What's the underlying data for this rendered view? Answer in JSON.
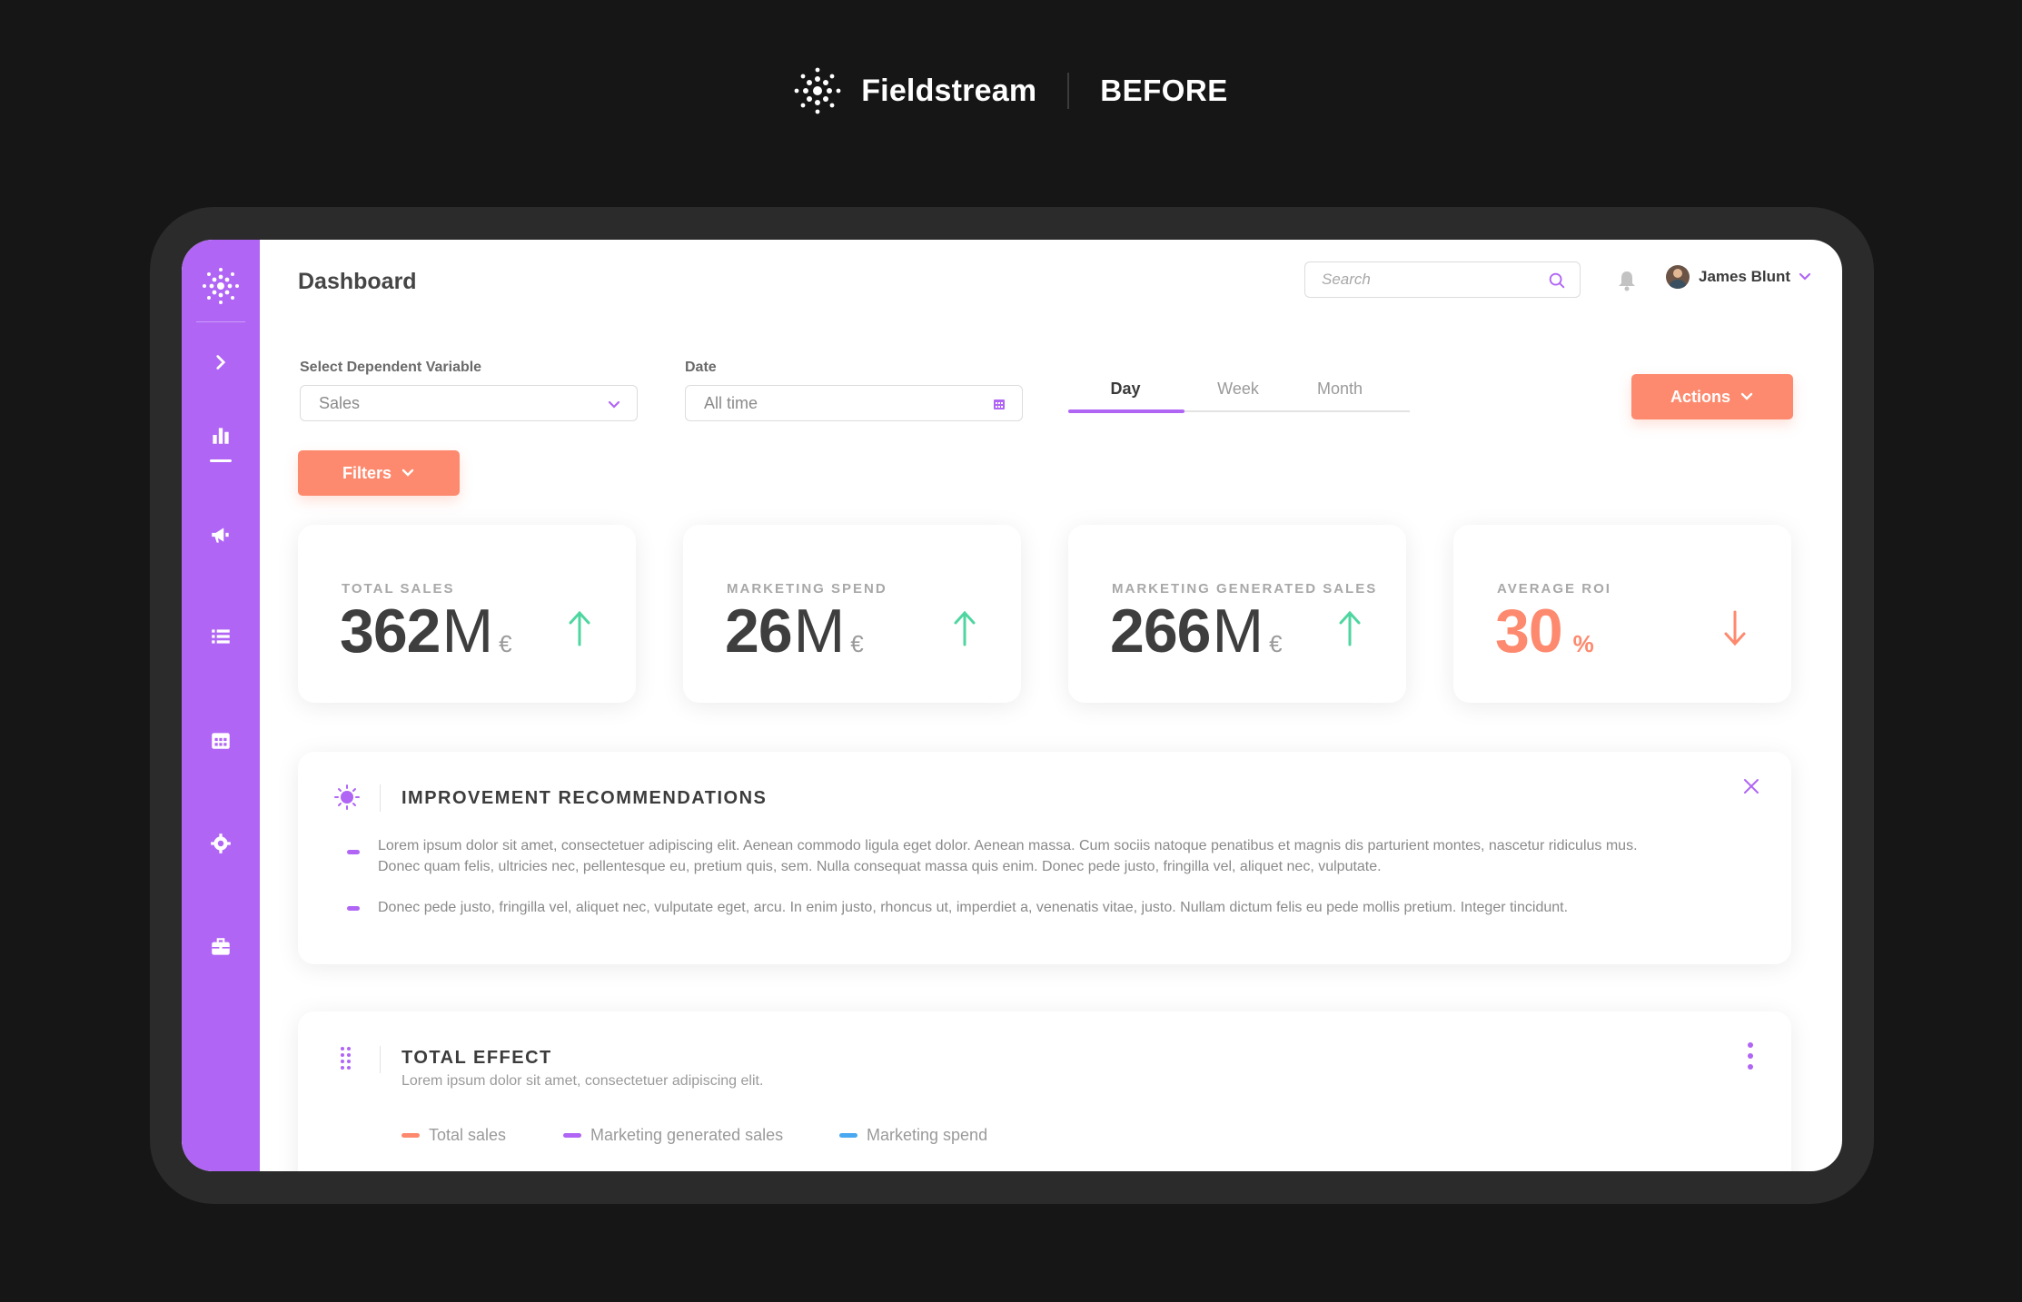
{
  "brand": {
    "name": "Fieldstream",
    "tag": "BEFORE"
  },
  "header": {
    "title": "Dashboard",
    "search_placeholder": "Search",
    "user_name": "James Blunt"
  },
  "filters": {
    "dependent_label": "Select Dependent Variable",
    "dependent_value": "Sales",
    "date_label": "Date",
    "date_value": "All time",
    "periods": [
      "Day",
      "Week",
      "Month"
    ],
    "active_period": "Day",
    "actions_label": "Actions",
    "filters_label": "Filters"
  },
  "kpis": [
    {
      "label": "TOTAL SALES",
      "value": "362",
      "unit": "M",
      "currency": "€",
      "trend": "up"
    },
    {
      "label": "MARKETING SPEND",
      "value": "26",
      "unit": "M",
      "currency": "€",
      "trend": "up"
    },
    {
      "label": "MARKETING GENERATED SALES",
      "value": "266",
      "unit": "M",
      "currency": "€",
      "trend": "up"
    },
    {
      "label": "AVERAGE ROI",
      "value": "30",
      "unit": "",
      "currency": "%",
      "trend": "down"
    }
  ],
  "recommendations": {
    "title": "IMPROVEMENT RECOMMENDATIONS",
    "items": [
      "Lorem ipsum dolor sit amet, consectetuer adipiscing elit. Aenean commodo ligula eget dolor. Aenean massa. Cum sociis natoque penatibus et magnis dis parturient montes, nascetur ridiculus mus. Donec quam felis, ultricies nec, pellentesque eu, pretium quis, sem. Nulla consequat massa quis enim. Donec pede justo, fringilla vel, aliquet nec, vulputate.",
      "Donec pede justo, fringilla vel, aliquet nec, vulputate eget, arcu. In enim justo, rhoncus ut, imperdiet a, venenatis vitae, justo. Nullam dictum felis eu pede mollis pretium. Integer tincidunt."
    ]
  },
  "total_effect": {
    "title": "TOTAL EFFECT",
    "subtitle": "Lorem ipsum dolor sit amet, consectetuer adipiscing elit.",
    "legend": [
      {
        "label": "Total sales",
        "color": "#fd8a6e"
      },
      {
        "label": "Marketing generated sales",
        "color": "#b065f5"
      },
      {
        "label": "Marketing spend",
        "color": "#4aa8f0"
      }
    ]
  },
  "colors": {
    "accent": "#b065f5",
    "primary_button": "#fd8a6e",
    "trend_up": "#4fd6a0",
    "trend_down": "#fd8a6e"
  },
  "icons": {
    "sidebar": [
      "logo-icon",
      "chevron-right-icon",
      "bar-chart-icon",
      "megaphone-icon",
      "list-icon",
      "calendar-icon",
      "gear-icon",
      "briefcase-icon"
    ]
  }
}
